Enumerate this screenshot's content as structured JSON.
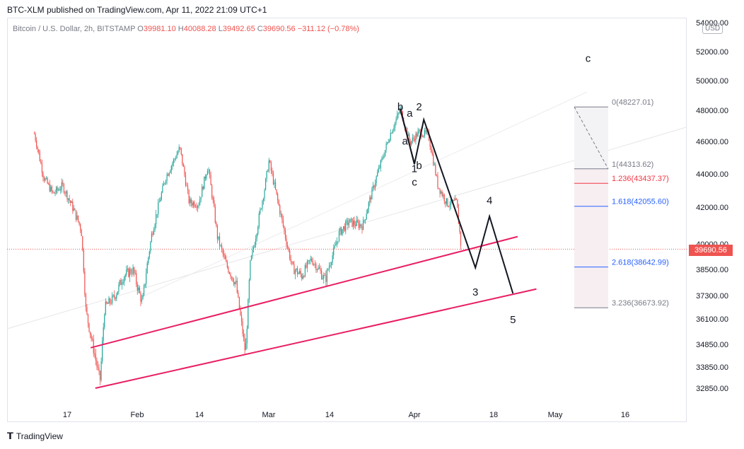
{
  "header": {
    "published": "BTC-XLM published on TradingView.com, Apr 11, 2022 21:09 UTC+1"
  },
  "legend": {
    "symbol": "Bitcoin / U.S. Dollar, 2h, BITSTAMP",
    "o_label": "O",
    "o": "39981.10",
    "h_label": "H",
    "h": "40088.28",
    "l_label": "L",
    "l": "39492.65",
    "c_label": "C",
    "c": "39690.56",
    "change": "−311.12 (−0.78%)"
  },
  "currency": "USD",
  "last_price": "39690.56",
  "footer": {
    "brand": "TradingView"
  },
  "colors": {
    "up": "#26a69a",
    "down": "#ef5350",
    "channel": "#e91e63",
    "wave": "#131722",
    "fib_blue": "#2962ff",
    "fib_red": "#f23645"
  },
  "chart_data": {
    "type": "candlestick",
    "yaxis_ticks": [
      54000,
      52000,
      50000,
      48000,
      46000,
      44000,
      42000,
      40000,
      38500,
      37300,
      36100,
      34850,
      33850,
      32850
    ],
    "yaxis_labels": [
      "54000.00",
      "52000.00",
      "50000.00",
      "48000.00",
      "46000.00",
      "44000.00",
      "42000.00",
      "40000.00",
      "38500.00",
      "37300.00",
      "36100.00",
      "34850.00",
      "33850.00",
      "32850.00"
    ],
    "xaxis_labels": [
      "17",
      "Feb",
      "14",
      "Mar",
      "14",
      "Apr",
      "18",
      "May",
      "16"
    ],
    "price_series": [
      {
        "d": "2022-01-10",
        "p": 46500
      },
      {
        "d": "2022-01-12",
        "p": 43800
      },
      {
        "d": "2022-01-14",
        "p": 42800
      },
      {
        "d": "2022-01-16",
        "p": 43300
      },
      {
        "d": "2022-01-18",
        "p": 42100
      },
      {
        "d": "2022-01-20",
        "p": 40800
      },
      {
        "d": "2022-01-21",
        "p": 36500
      },
      {
        "d": "2022-01-22",
        "p": 35300
      },
      {
        "d": "2022-01-24",
        "p": 33200
      },
      {
        "d": "2022-01-25",
        "p": 36700
      },
      {
        "d": "2022-01-27",
        "p": 37200
      },
      {
        "d": "2022-01-29",
        "p": 38200
      },
      {
        "d": "2022-01-31",
        "p": 38500
      },
      {
        "d": "2022-02-02",
        "p": 36900
      },
      {
        "d": "2022-02-04",
        "p": 40500
      },
      {
        "d": "2022-02-07",
        "p": 43800
      },
      {
        "d": "2022-02-10",
        "p": 45600
      },
      {
        "d": "2022-02-12",
        "p": 42300
      },
      {
        "d": "2022-02-14",
        "p": 42200
      },
      {
        "d": "2022-02-16",
        "p": 44500
      },
      {
        "d": "2022-02-18",
        "p": 40400
      },
      {
        "d": "2022-02-20",
        "p": 38700
      },
      {
        "d": "2022-02-22",
        "p": 37800
      },
      {
        "d": "2022-02-24",
        "p": 34400
      },
      {
        "d": "2022-02-25",
        "p": 38800
      },
      {
        "d": "2022-02-28",
        "p": 43000
      },
      {
        "d": "2022-03-01",
        "p": 44800
      },
      {
        "d": "2022-03-03",
        "p": 42200
      },
      {
        "d": "2022-03-06",
        "p": 38600
      },
      {
        "d": "2022-03-08",
        "p": 38200
      },
      {
        "d": "2022-03-10",
        "p": 39100
      },
      {
        "d": "2022-03-13",
        "p": 38000
      },
      {
        "d": "2022-03-16",
        "p": 40600
      },
      {
        "d": "2022-03-18",
        "p": 41200
      },
      {
        "d": "2022-03-21",
        "p": 41000
      },
      {
        "d": "2022-03-24",
        "p": 43900
      },
      {
        "d": "2022-03-27",
        "p": 46600
      },
      {
        "d": "2022-03-28",
        "p": 47300
      },
      {
        "d": "2022-03-29",
        "p": 48100
      },
      {
        "d": "2022-03-31",
        "p": 45900
      },
      {
        "d": "2022-04-02",
        "p": 46600
      },
      {
        "d": "2022-04-04",
        "p": 46400
      },
      {
        "d": "2022-04-06",
        "p": 43300
      },
      {
        "d": "2022-04-08",
        "p": 42200
      },
      {
        "d": "2022-04-10",
        "p": 42300
      },
      {
        "d": "2022-04-11",
        "p": 39690
      }
    ],
    "wave_projection": [
      {
        "d": "2022-03-29",
        "p": 48100,
        "label": "b"
      },
      {
        "d": "2022-04-01",
        "p": 44600,
        "label": "1"
      },
      {
        "d": "2022-04-03",
        "p": 47400,
        "label": "2"
      },
      {
        "d": "2022-04-14",
        "p": 38600,
        "label": "3"
      },
      {
        "d": "2022-04-17",
        "p": 41500,
        "label": "4"
      },
      {
        "d": "2022-04-22",
        "p": 37400,
        "label": "5"
      }
    ],
    "channel_lines": [
      {
        "from": {
          "d": "2022-01-22",
          "p": 34700
        },
        "to": {
          "d": "2022-04-23",
          "p": 40400
        }
      },
      {
        "from": {
          "d": "2022-01-23",
          "p": 32850
        },
        "to": {
          "d": "2022-04-27",
          "p": 37600
        }
      }
    ],
    "fib_levels": [
      {
        "ratio": "0",
        "price": "48227.01",
        "p": 48227.01,
        "color": "#787b86"
      },
      {
        "ratio": "1",
        "price": "44313.62",
        "p": 44313.62,
        "color": "#787b86"
      },
      {
        "ratio": "1.236",
        "price": "43437.37",
        "p": 43437.37,
        "color": "#f23645"
      },
      {
        "ratio": "1.618",
        "price": "42055.60",
        "p": 42055.6,
        "color": "#2962ff"
      },
      {
        "ratio": "2.618",
        "price": "38642.99",
        "p": 38642.99,
        "color": "#2962ff"
      },
      {
        "ratio": "3.236",
        "price": "36673.92",
        "p": 36673.92,
        "color": "#787b86"
      }
    ],
    "annotations": [
      {
        "text": "c",
        "d": "2022-05-08",
        "p": 51300
      },
      {
        "text": "b",
        "d": "2022-03-29",
        "p": 48000
      },
      {
        "text": "a",
        "d": "2022-03-31",
        "p": 47600
      },
      {
        "text": "2",
        "d": "2022-04-02",
        "p": 48000
      },
      {
        "text": "a",
        "d": "2022-03-30",
        "p": 45800
      },
      {
        "text": "1",
        "d": "2022-04-01",
        "p": 44100
      },
      {
        "text": "b",
        "d": "2022-04-02",
        "p": 44300
      },
      {
        "text": "c",
        "d": "2022-04-01",
        "p": 43300
      },
      {
        "text": "3",
        "d": "2022-04-14",
        "p": 37300
      },
      {
        "text": "4",
        "d": "2022-04-17",
        "p": 42200
      },
      {
        "text": "5",
        "d": "2022-04-22",
        "p": 35900
      }
    ]
  }
}
